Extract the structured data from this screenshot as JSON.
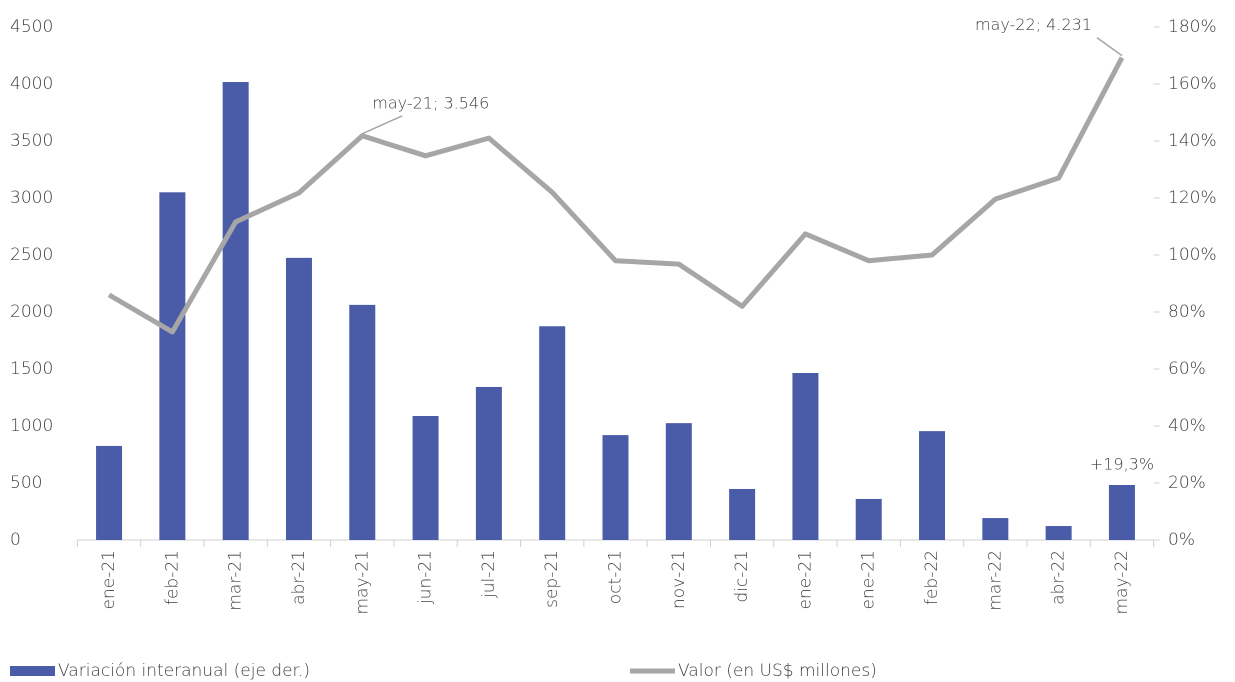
{
  "chart_data": {
    "type": "bar_line",
    "categories": [
      "ene-21",
      "feb-21",
      "mar-21",
      "abr-21",
      "may-21",
      "jun-21",
      "jul-21",
      "sep-21",
      "oct-21",
      "nov-21",
      "dic-21",
      "ene-21",
      "ene-21",
      "feb-22",
      "mar-22",
      "abr-22",
      "may-22"
    ],
    "series": [
      {
        "name": "Variación interanual (eje der.)",
        "type": "bar",
        "axis": "y2",
        "color": "#4a5ba8",
        "values": [
          33,
          122,
          160.7,
          99,
          82.5,
          43.5,
          53.7,
          75,
          36.8,
          41,
          17.9,
          58.6,
          14.4,
          38.2,
          7.7,
          4.9,
          19.3
        ],
        "value_labels": [
          null,
          null,
          null,
          null,
          null,
          null,
          null,
          null,
          null,
          null,
          null,
          null,
          null,
          null,
          null,
          null,
          "+19,3%"
        ]
      },
      {
        "name": "Valor (en US$ millones)",
        "type": "line",
        "axis": "y",
        "color": "#a6a6a6",
        "values": [
          2150,
          1825,
          2790,
          3045,
          3546,
          3370,
          3525,
          3050,
          2450,
          2420,
          2050,
          2685,
          2450,
          2500,
          2990,
          3175,
          4231
        ],
        "value_labels": [
          null,
          null,
          null,
          null,
          "may-21;  3.546",
          null,
          null,
          null,
          null,
          null,
          null,
          null,
          null,
          null,
          null,
          null,
          "may-22;  4.231"
        ]
      }
    ],
    "ylim": [
      0,
      4500
    ],
    "yticks": [
      0,
      500,
      1000,
      1500,
      2000,
      2500,
      3000,
      3500,
      4000,
      4500
    ],
    "y2lim": [
      0,
      180
    ],
    "y2ticks": [
      {
        "value": 0,
        "label": "0%"
      },
      {
        "value": 20,
        "label": "20%"
      },
      {
        "value": 40,
        "label": "40%"
      },
      {
        "value": 60,
        "label": "60%"
      },
      {
        "value": 80,
        "label": "80%"
      },
      {
        "value": 100,
        "label": "100%"
      },
      {
        "value": 120,
        "label": "120%"
      },
      {
        "value": 140,
        "label": "140%"
      },
      {
        "value": 160,
        "label": "160%"
      },
      {
        "value": 180,
        "label": "180%"
      }
    ],
    "legend": "bottom"
  }
}
